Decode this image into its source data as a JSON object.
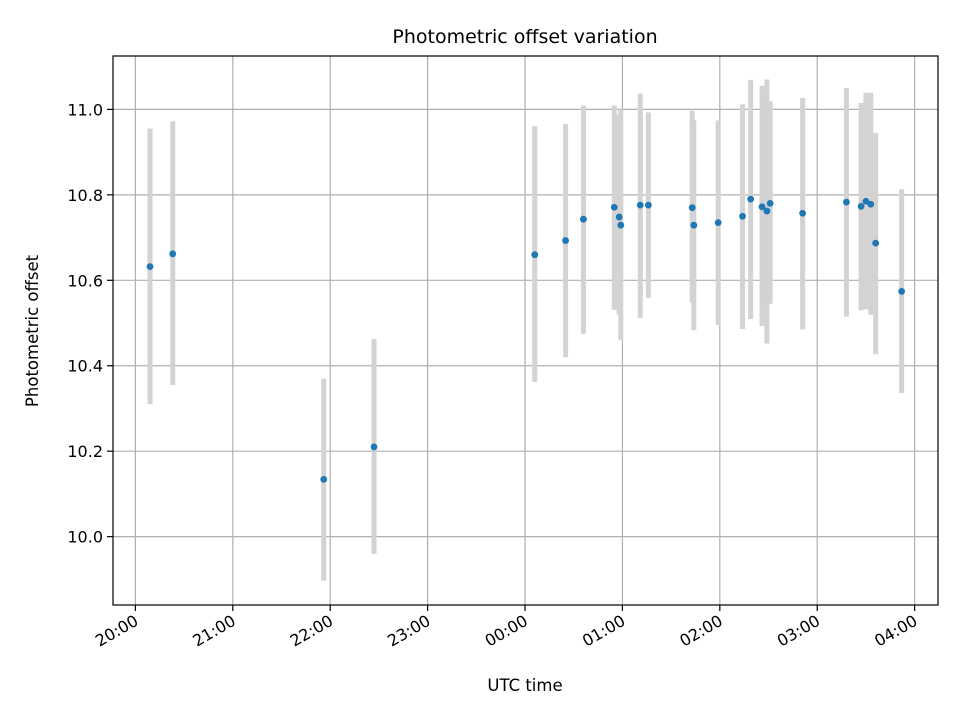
{
  "chart_data": {
    "type": "scatter",
    "title": "Photometric offset variation",
    "xlabel": "UTC time",
    "ylabel": "Photometric offset",
    "x_axis": {
      "unit": "hours since 20:00",
      "lim": [
        -0.23,
        8.24
      ],
      "ticks": [
        0,
        1,
        2,
        3,
        4,
        5,
        6,
        7,
        8
      ],
      "tick_labels": [
        "20:00",
        "21:00",
        "22:00",
        "23:00",
        "00:00",
        "01:00",
        "02:00",
        "03:00",
        "04:00"
      ]
    },
    "y_axis": {
      "lim": [
        9.84,
        11.125
      ],
      "ticks": [
        10.0,
        10.2,
        10.4,
        10.6,
        10.8,
        11.0
      ],
      "tick_labels": [
        "10.0",
        "10.2",
        "10.4",
        "10.6",
        "10.8",
        "11.0"
      ]
    },
    "grid": true,
    "series": [
      {
        "points": [
          {
            "x": "20:09",
            "y": 10.632,
            "yerr_low": 10.31,
            "yerr_high": 10.955
          },
          {
            "x": "20:23",
            "y": 10.662,
            "yerr_low": 10.355,
            "yerr_high": 10.972
          },
          {
            "x": "21:56",
            "y": 10.134,
            "yerr_low": 9.897,
            "yerr_high": 10.37
          },
          {
            "x": "22:27",
            "y": 10.21,
            "yerr_low": 9.96,
            "yerr_high": 10.463
          },
          {
            "x": "00:06",
            "y": 10.66,
            "yerr_low": 10.362,
            "yerr_high": 10.961
          },
          {
            "x": "00:25",
            "y": 10.693,
            "yerr_low": 10.42,
            "yerr_high": 10.966
          },
          {
            "x": "00:36",
            "y": 10.743,
            "yerr_low": 10.475,
            "yerr_high": 11.009
          },
          {
            "x": "00:55",
            "y": 10.771,
            "yerr_low": 10.531,
            "yerr_high": 11.009
          },
          {
            "x": "00:58",
            "y": 10.748,
            "yerr_low": 10.52,
            "yerr_high": 10.988
          },
          {
            "x": "00:59",
            "y": 10.729,
            "yerr_low": 10.46,
            "yerr_high": 11.0
          },
          {
            "x": "01:11",
            "y": 10.776,
            "yerr_low": 10.512,
            "yerr_high": 11.037
          },
          {
            "x": "01:16",
            "y": 10.776,
            "yerr_low": 10.559,
            "yerr_high": 10.993
          },
          {
            "x": "01:43",
            "y": 10.77,
            "yerr_low": 10.548,
            "yerr_high": 10.997
          },
          {
            "x": "01:44",
            "y": 10.729,
            "yerr_low": 10.483,
            "yerr_high": 10.975
          },
          {
            "x": "01:59",
            "y": 10.735,
            "yerr_low": 10.496,
            "yerr_high": 10.974
          },
          {
            "x": "02:14",
            "y": 10.75,
            "yerr_low": 10.486,
            "yerr_high": 11.012
          },
          {
            "x": "02:19",
            "y": 10.79,
            "yerr_low": 10.509,
            "yerr_high": 11.069
          },
          {
            "x": "02:26",
            "y": 10.772,
            "yerr_low": 10.493,
            "yerr_high": 11.055
          },
          {
            "x": "02:29",
            "y": 10.762,
            "yerr_low": 10.452,
            "yerr_high": 11.07
          },
          {
            "x": "02:31",
            "y": 10.78,
            "yerr_low": 10.545,
            "yerr_high": 11.019
          },
          {
            "x": "02:51",
            "y": 10.757,
            "yerr_low": 10.485,
            "yerr_high": 11.027
          },
          {
            "x": "03:18",
            "y": 10.783,
            "yerr_low": 10.515,
            "yerr_high": 11.05
          },
          {
            "x": "03:27",
            "y": 10.773,
            "yerr_low": 10.53,
            "yerr_high": 11.015
          },
          {
            "x": "03:30",
            "y": 10.785,
            "yerr_low": 10.532,
            "yerr_high": 11.039
          },
          {
            "x": "03:33",
            "y": 10.778,
            "yerr_low": 10.519,
            "yerr_high": 11.039
          },
          {
            "x": "03:36",
            "y": 10.687,
            "yerr_low": 10.427,
            "yerr_high": 10.945
          },
          {
            "x": "03:52",
            "y": 10.574,
            "yerr_low": 10.336,
            "yerr_high": 10.813
          }
        ]
      }
    ],
    "colors": {
      "marker": "#1f77b4",
      "errorbar": "#d3d3d3",
      "grid": "#b0b0b0",
      "axes": "#000000"
    }
  }
}
